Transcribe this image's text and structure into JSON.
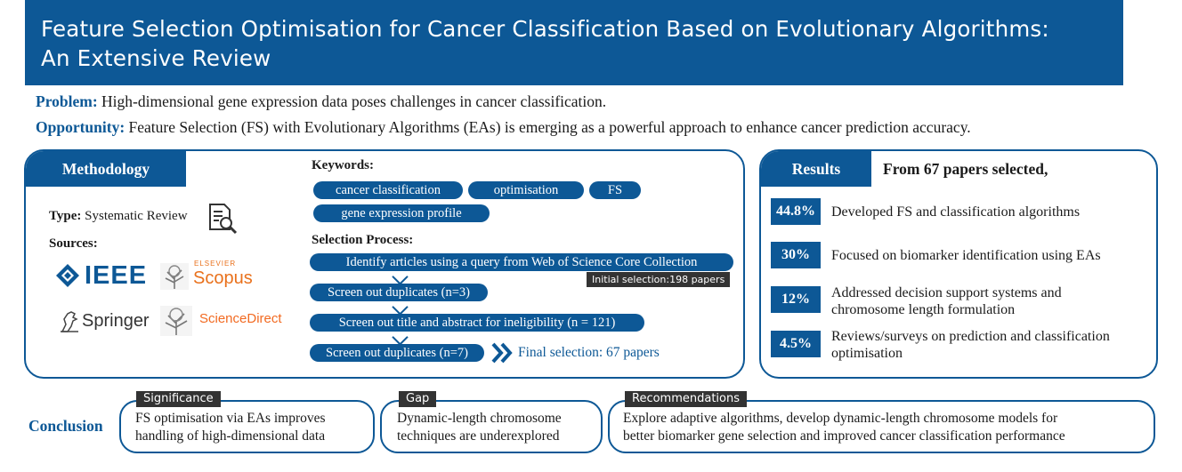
{
  "title": {
    "line1": "Feature Selection Optimisation for Cancer Classification Based on Evolutionary Algorithms:",
    "line2": "An Extensive Review"
  },
  "problem": {
    "label": "Problem:",
    "text": "High-dimensional gene expression data poses challenges in cancer classification."
  },
  "opportunity": {
    "label": "Opportunity:",
    "text": "Feature Selection (FS) with Evolutionary Algorithms (EAs) is emerging as a powerful approach to enhance cancer prediction accuracy."
  },
  "methodology": {
    "heading": "Methodology",
    "type_label": "Type:",
    "type_value": "Systematic Review",
    "sources_label": "Sources:",
    "sources": {
      "ieee": "IEEE",
      "elsevier": "ELSEVIER",
      "scopus": "Scopus",
      "springer": "Springer",
      "sciencedirect": "ScienceDirect"
    },
    "keywords_label": "Keywords:",
    "keywords": [
      "cancer classification",
      "optimisation",
      "FS",
      "gene expression profile"
    ],
    "selection_label": "Selection Process:",
    "steps": [
      "Identify articles using a query from Web of Science Core Collection",
      "Screen out duplicates (n=3)",
      "Screen out title and abstract for ineligibility (n = 121)",
      "Screen out duplicates (n=7)"
    ],
    "initial_note": "Initial selection:198 papers",
    "final_selection": "Final selection: 67 papers"
  },
  "results": {
    "heading": "Results",
    "subheading": "From 67 papers selected,",
    "items": [
      {
        "pct": "44.8%",
        "line1": "Developed FS and classification algorithms",
        "line2": ""
      },
      {
        "pct": "30%",
        "line1": "Focused on biomarker identification using EAs",
        "line2": ""
      },
      {
        "pct": "12%",
        "line1": "Addressed decision support systems and",
        "line2": "chromosome length formulation"
      },
      {
        "pct": "4.5%",
        "line1": "Reviews/surveys on prediction and classification",
        "line2": "optimisation"
      }
    ]
  },
  "conclusion": {
    "label": "Conclusion",
    "significance": {
      "tag": "Significance",
      "line1": "FS optimisation via EAs improves",
      "line2": "handling of high-dimensional data"
    },
    "gap": {
      "tag": "Gap",
      "line1": "Dynamic-length chromosome",
      "line2": "techniques are underexplored"
    },
    "recommendations": {
      "tag": "Recommendations",
      "line1": "Explore adaptive algorithms, develop dynamic-length chromosome models for",
      "line2": "better biomarker gene selection and improved cancer classification performance"
    }
  },
  "colors": {
    "primary": "#0d5896",
    "tag_dark": "#333333",
    "scopus_orange": "#e9711c",
    "sciencedirect_orange": "#f26a21"
  }
}
